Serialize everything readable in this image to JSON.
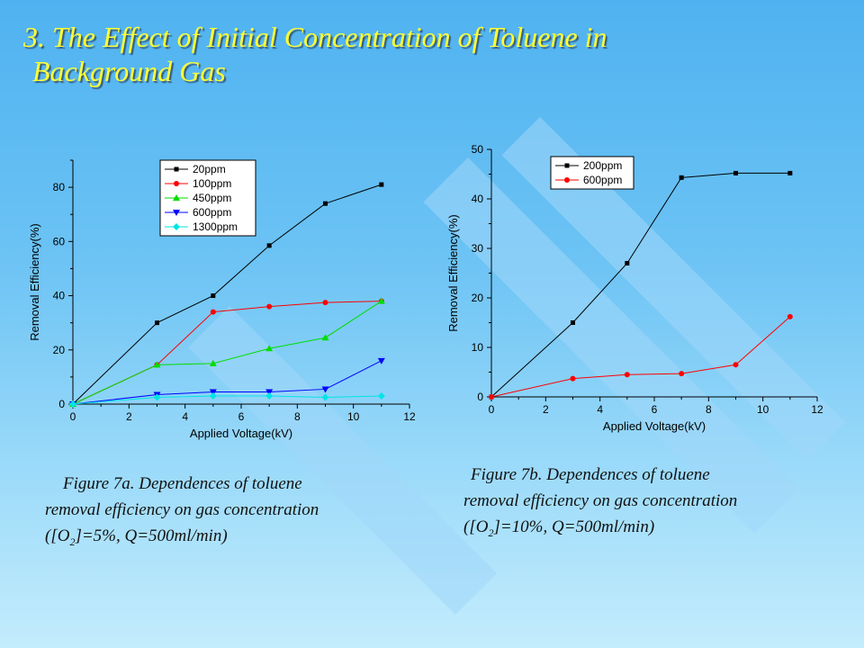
{
  "slide": {
    "title_line1": "3. The Effect of Initial Concentration of Toluene in",
    "title_line2": "Background Gas",
    "title_color": "#ffff33"
  },
  "captions": {
    "fig7a": {
      "line1": "Figure 7a. Dependences of toluene",
      "line2": "removal efficiency on gas concentration",
      "line3_pre": "([O",
      "line3_sub": "2",
      "line3_post": "]=5%, Q=500ml/min)"
    },
    "fig7b": {
      "line1": "Figure 7b. Dependences of toluene",
      "line2": "removal efficiency on gas concentration",
      "line3_pre": "([O",
      "line3_sub": "2",
      "line3_post": "]=10%, Q=500ml/min)"
    }
  },
  "chart_data": [
    {
      "type": "line",
      "xlabel": "Applied Voltage(kV)",
      "ylabel": "Removal Efficiency(%)",
      "xlim": [
        0,
        12
      ],
      "ylim": [
        0,
        90
      ],
      "xticks": [
        "0",
        "2",
        "4",
        "6",
        "8",
        "10",
        "12"
      ],
      "yticks": [
        "0",
        "20",
        "40",
        "60",
        "80"
      ],
      "xtick_values": [
        0,
        2,
        4,
        6,
        8,
        10,
        12
      ],
      "ytick_values": [
        0,
        20,
        40,
        60,
        80
      ],
      "grid": false,
      "legend_position": "top-left",
      "series": [
        {
          "name": "20ppm",
          "color": "#000000",
          "marker": "square",
          "x": [
            0,
            3,
            5,
            7,
            9,
            11
          ],
          "y": [
            0,
            30,
            40,
            58.5,
            74,
            81
          ]
        },
        {
          "name": "100ppm",
          "color": "#ff0000",
          "marker": "circle",
          "x": [
            0,
            3,
            5,
            7,
            9,
            11
          ],
          "y": [
            0,
            14.5,
            34,
            36,
            37.5,
            38
          ]
        },
        {
          "name": "450ppm",
          "color": "#00dd00",
          "marker": "triangle-up",
          "x": [
            0,
            3,
            5,
            7,
            9,
            11
          ],
          "y": [
            0,
            14.5,
            15,
            20.5,
            24.5,
            38
          ]
        },
        {
          "name": "600ppm",
          "color": "#0000ff",
          "marker": "triangle-down",
          "x": [
            0,
            3,
            5,
            7,
            9,
            11
          ],
          "y": [
            0,
            3.5,
            4.5,
            4.5,
            5.5,
            16
          ]
        },
        {
          "name": "1300ppm",
          "color": "#00e5e5",
          "marker": "diamond",
          "x": [
            0,
            3,
            5,
            7,
            9,
            11
          ],
          "y": [
            0,
            2.5,
            3,
            3,
            2.5,
            3
          ]
        }
      ]
    },
    {
      "type": "line",
      "xlabel": "Applied Voltage(kV)",
      "ylabel": "Removal Efficiency(%)",
      "xlim": [
        0,
        12
      ],
      "ylim": [
        0,
        50
      ],
      "xticks": [
        "0",
        "2",
        "4",
        "6",
        "8",
        "10",
        "12"
      ],
      "yticks": [
        "0",
        "10",
        "20",
        "30",
        "40",
        "50"
      ],
      "xtick_values": [
        0,
        2,
        4,
        6,
        8,
        10,
        12
      ],
      "ytick_values": [
        0,
        10,
        20,
        30,
        40,
        50
      ],
      "grid": false,
      "legend_position": "top-left",
      "series": [
        {
          "name": "200ppm",
          "color": "#000000",
          "marker": "square",
          "x": [
            0,
            3,
            5,
            7,
            9,
            11
          ],
          "y": [
            0,
            15,
            27,
            44.3,
            45.2,
            45.2
          ]
        },
        {
          "name": "600ppm",
          "color": "#ff0000",
          "marker": "circle",
          "x": [
            0,
            3,
            5,
            7,
            9,
            11
          ],
          "y": [
            0,
            3.7,
            4.5,
            4.7,
            6.5,
            16.2
          ]
        }
      ]
    }
  ]
}
